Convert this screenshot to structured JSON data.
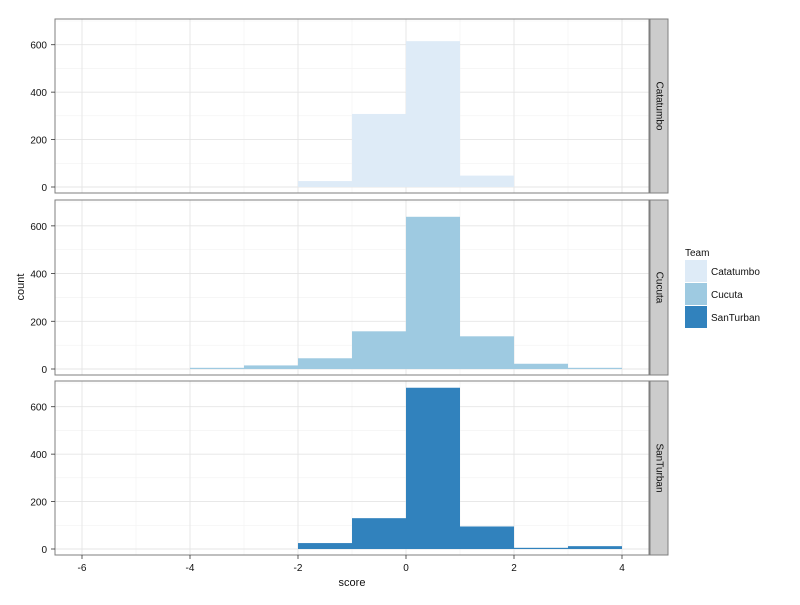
{
  "chart_data": {
    "type": "bar",
    "subtype": "faceted-histogram",
    "xlabel": "score",
    "ylabel": "count",
    "xlim": [
      -6.5,
      4.5
    ],
    "ylim": [
      0,
      700
    ],
    "x_ticks": [
      "-6",
      "-4",
      "-2",
      "0",
      "2",
      "4"
    ],
    "x_tick_values": [
      -6,
      -4,
      -2,
      0,
      2,
      4
    ],
    "y_ticks": [
      "0",
      "200",
      "400",
      "600"
    ],
    "y_tick_values": [
      0,
      200,
      400,
      600
    ],
    "bin_width": 1,
    "grid": true,
    "legend_position": "right",
    "legend": {
      "title": "Team",
      "entries": [
        {
          "label": "Catatumbo",
          "color": "#deebf7"
        },
        {
          "label": "Cucuta",
          "color": "#9ecae1"
        },
        {
          "label": "SanTurban",
          "color": "#3182bd"
        }
      ]
    },
    "panels": [
      {
        "strip_label": "Catatumbo",
        "color": "#deebf7",
        "bins": [
          {
            "x0": -2,
            "x1": -1,
            "count": 25
          },
          {
            "x0": -1,
            "x1": 0,
            "count": 308
          },
          {
            "x0": 0,
            "x1": 1,
            "count": 615
          },
          {
            "x0": 1,
            "x1": 2,
            "count": 48
          }
        ]
      },
      {
        "strip_label": "Cucuta",
        "color": "#9ecae1",
        "bins": [
          {
            "x0": -4,
            "x1": -3,
            "count": 5
          },
          {
            "x0": -3,
            "x1": -2,
            "count": 15
          },
          {
            "x0": -2,
            "x1": -1,
            "count": 45
          },
          {
            "x0": -1,
            "x1": 0,
            "count": 158
          },
          {
            "x0": 0,
            "x1": 1,
            "count": 638
          },
          {
            "x0": 1,
            "x1": 2,
            "count": 137
          },
          {
            "x0": 2,
            "x1": 3,
            "count": 22
          },
          {
            "x0": 3,
            "x1": 4,
            "count": 5
          }
        ]
      },
      {
        "strip_label": "SanTurban",
        "color": "#3182bd",
        "bins": [
          {
            "x0": -2,
            "x1": -1,
            "count": 25
          },
          {
            "x0": -1,
            "x1": 0,
            "count": 130
          },
          {
            "x0": 0,
            "x1": 1,
            "count": 680
          },
          {
            "x0": 1,
            "x1": 2,
            "count": 95
          },
          {
            "x0": 2,
            "x1": 3,
            "count": 5
          },
          {
            "x0": 3,
            "x1": 4,
            "count": 12
          }
        ]
      }
    ]
  }
}
